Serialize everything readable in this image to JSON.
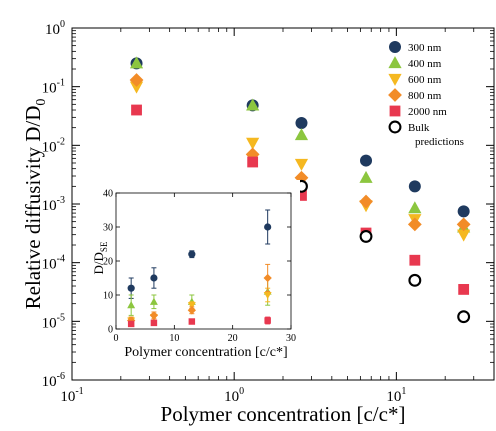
{
  "chart_data": [
    {
      "type": "scatter",
      "title": "",
      "xlabel": "Polymer concentration [c/c*]",
      "ylabel_main": "Relative diffusivity D/D",
      "ylabel_sub": "0",
      "x_scale": "log",
      "y_scale": "log",
      "xlim": [
        0.1,
        40
      ],
      "ylim": [
        1e-06,
        1
      ],
      "x_ticks": [
        {
          "value": 0.1,
          "base": "10",
          "exp": "-1"
        },
        {
          "value": 1,
          "base": "10",
          "exp": "0"
        },
        {
          "value": 10,
          "base": "10",
          "exp": "1"
        }
      ],
      "y_ticks": [
        {
          "value": 1,
          "base": "10",
          "exp": "0"
        },
        {
          "value": 0.1,
          "base": "10",
          "exp": "-1"
        },
        {
          "value": 0.01,
          "base": "10",
          "exp": "-2"
        },
        {
          "value": 0.001,
          "base": "10",
          "exp": "-3"
        },
        {
          "value": 0.0001,
          "base": "10",
          "exp": "-4"
        },
        {
          "value": 1e-05,
          "base": "10",
          "exp": "-5"
        },
        {
          "value": 1e-06,
          "base": "10",
          "exp": "-6"
        }
      ],
      "legend": {
        "placement": "top-right",
        "entries": [
          {
            "label": "300 nm",
            "marker": "circle",
            "color": "#1f3a5f"
          },
          {
            "label": "400 nm",
            "marker": "triangle-up",
            "color": "#8cc63f"
          },
          {
            "label": "600 nm",
            "marker": "triangle-down",
            "color": "#f5b820"
          },
          {
            "label": "800 nm",
            "marker": "diamond",
            "color": "#f28c28"
          },
          {
            "label": "2000 nm",
            "marker": "square",
            "color": "#e8384f"
          },
          {
            "label": "Bulk",
            "label2": "predictions",
            "marker": "open-circle",
            "color": "#000000"
          }
        ]
      },
      "series": [
        {
          "name": "300 nm",
          "marker": "circle",
          "color": "#1f3a5f",
          "points": [
            {
              "x": 0.25,
              "y": 0.25
            },
            {
              "x": 1.3,
              "y": 0.048
            },
            {
              "x": 2.6,
              "y": 0.024
            },
            {
              "x": 6.5,
              "y": 0.0055
            },
            {
              "x": 13,
              "y": 0.002
            },
            {
              "x": 26,
              "y": 0.00075
            }
          ]
        },
        {
          "name": "400 nm",
          "marker": "triangle-up",
          "color": "#8cc63f",
          "points": [
            {
              "x": 0.25,
              "y": 0.25
            },
            {
              "x": 1.3,
              "y": 0.048
            },
            {
              "x": 2.6,
              "y": 0.015
            },
            {
              "x": 6.5,
              "y": 0.0028
            },
            {
              "x": 13,
              "y": 0.00085
            },
            {
              "x": 26,
              "y": 0.0004
            }
          ]
        },
        {
          "name": "600 nm",
          "marker": "triangle-down",
          "color": "#f5b820",
          "points": [
            {
              "x": 0.25,
              "y": 0.1
            },
            {
              "x": 1.3,
              "y": 0.011
            },
            {
              "x": 2.6,
              "y": 0.0048
            },
            {
              "x": 6.5,
              "y": 0.00095
            },
            {
              "x": 13,
              "y": 0.00055
            },
            {
              "x": 26,
              "y": 0.0003
            }
          ]
        },
        {
          "name": "800 nm",
          "marker": "diamond",
          "color": "#f28c28",
          "points": [
            {
              "x": 0.25,
              "y": 0.13
            },
            {
              "x": 1.3,
              "y": 0.007
            },
            {
              "x": 2.6,
              "y": 0.0028
            },
            {
              "x": 6.5,
              "y": 0.0011
            },
            {
              "x": 13,
              "y": 0.00045
            },
            {
              "x": 26,
              "y": 0.00045
            }
          ]
        },
        {
          "name": "2000 nm",
          "marker": "square",
          "color": "#e8384f",
          "points": [
            {
              "x": 0.25,
              "y": 0.04
            },
            {
              "x": 1.3,
              "y": 0.0052
            },
            {
              "x": 2.6,
              "y": 0.0014
            },
            {
              "x": 6.5,
              "y": 0.00032
            },
            {
              "x": 13,
              "y": 0.00011
            },
            {
              "x": 26,
              "y": 3.5e-05
            }
          ]
        },
        {
          "name": "Bulk predictions",
          "marker": "open-circle",
          "color": "#000000",
          "points": [
            {
              "x": 2.6,
              "y": 0.002
            },
            {
              "x": 6.5,
              "y": 0.00028
            },
            {
              "x": 13,
              "y": 5e-05
            },
            {
              "x": 26,
              "y": 1.2e-05
            }
          ]
        }
      ]
    },
    {
      "type": "scatter",
      "placement": "inset, lower-left of main plot",
      "xlabel": "Polymer concentration [c/c*]",
      "ylabel_main": "D/D",
      "ylabel_sub": "SE",
      "xlim": [
        0,
        30
      ],
      "ylim": [
        0,
        40
      ],
      "x_ticks": [
        0,
        10,
        20,
        30
      ],
      "y_ticks": [
        0,
        10,
        20,
        30,
        40
      ],
      "series": [
        {
          "name": "300 nm",
          "marker": "circle",
          "color": "#1f3a5f",
          "points": [
            {
              "x": 2.6,
              "y": 12,
              "err": 3
            },
            {
              "x": 6.5,
              "y": 15,
              "err": 3
            },
            {
              "x": 13,
              "y": 22,
              "err": 1
            },
            {
              "x": 26,
              "y": 30,
              "err": 5
            }
          ]
        },
        {
          "name": "400 nm",
          "marker": "triangle-up",
          "color": "#8cc63f",
          "points": [
            {
              "x": 2.6,
              "y": 7,
              "err": 3
            },
            {
              "x": 6.5,
              "y": 8,
              "err": 2
            },
            {
              "x": 13,
              "y": 8,
              "err": 2
            },
            {
              "x": 26,
              "y": 11,
              "err": 4
            }
          ]
        },
        {
          "name": "600 nm",
          "marker": "triangle-down",
          "color": "#f5b820",
          "points": [
            {
              "x": 2.6,
              "y": 2.5,
              "err": 1
            },
            {
              "x": 6.5,
              "y": 3.5,
              "err": 1
            },
            {
              "x": 13,
              "y": 7,
              "err": 1
            },
            {
              "x": 26,
              "y": 10,
              "err": 2
            }
          ]
        },
        {
          "name": "800 nm",
          "marker": "diamond",
          "color": "#f28c28",
          "points": [
            {
              "x": 2.6,
              "y": 2.5,
              "err": 1
            },
            {
              "x": 6.5,
              "y": 4,
              "err": 1
            },
            {
              "x": 13,
              "y": 5.5,
              "err": 1
            },
            {
              "x": 26,
              "y": 15,
              "err": 4
            }
          ]
        },
        {
          "name": "2000 nm",
          "marker": "square",
          "color": "#e8384f",
          "points": [
            {
              "x": 2.6,
              "y": 1.5,
              "err": 0.5
            },
            {
              "x": 6.5,
              "y": 1.8,
              "err": 0.5
            },
            {
              "x": 13,
              "y": 2.2,
              "err": 0.5
            },
            {
              "x": 26,
              "y": 2.5,
              "err": 1
            }
          ]
        }
      ]
    }
  ]
}
